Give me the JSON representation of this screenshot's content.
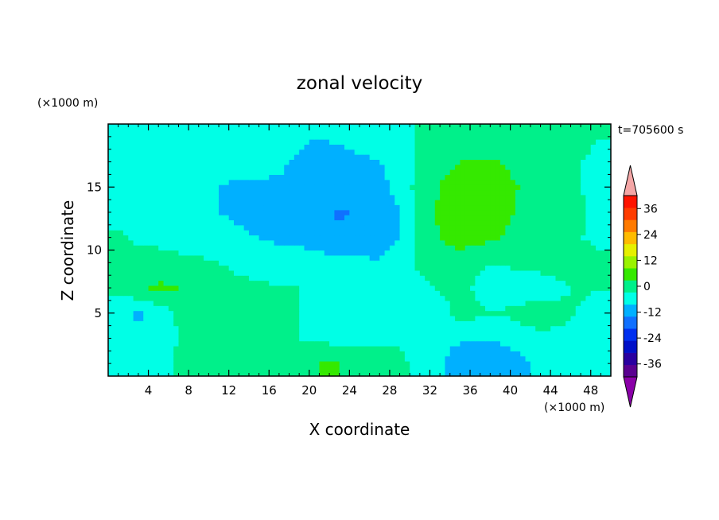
{
  "chart_data": {
    "type": "heatmap",
    "title": "zonal velocity",
    "xlabel": "X coordinate",
    "ylabel": "Z coordinate",
    "x_unit": "(×1000 m)",
    "y_unit": "(×1000 m)",
    "time_label": "t=705600 s",
    "xlim": [
      0,
      50
    ],
    "ylim": [
      0,
      20
    ],
    "x_ticks": [
      4,
      8,
      12,
      16,
      20,
      24,
      28,
      32,
      36,
      40,
      44,
      48
    ],
    "y_ticks": [
      5,
      10,
      15
    ],
    "colorbar": {
      "levels": [
        -42,
        -36,
        -30,
        -24,
        -18,
        -12,
        -6,
        0,
        6,
        12,
        18,
        24,
        30,
        36,
        42
      ],
      "tick_labels": [
        "36",
        "24",
        "12",
        "0",
        "-12",
        "-24",
        "-36"
      ],
      "tick_values": [
        36,
        24,
        12,
        0,
        -12,
        -24,
        -36
      ],
      "colors": [
        "#5a0090",
        "#2a00a0",
        "#0010c8",
        "#0030f0",
        "#1070ff",
        "#00b0ff",
        "#00ffe6",
        "#00f08a",
        "#35e900",
        "#9af200",
        "#e6f000",
        "#ffbb00",
        "#ff7a00",
        "#ff3c00",
        "#ff1400"
      ],
      "over_color": "#f4a6a6",
      "under_color": "#8a00a8"
    },
    "field": {
      "x": [
        1,
        3,
        5,
        7,
        9,
        11,
        13,
        15,
        17,
        19,
        21,
        23,
        25,
        27,
        29,
        31,
        33,
        35,
        37,
        39,
        41,
        43,
        45,
        47,
        49
      ],
      "z": [
        1,
        3,
        5,
        7,
        9,
        11,
        13,
        15,
        17,
        19
      ],
      "u": [
        [
          -1,
          -3,
          -2,
          1,
          1,
          1,
          3,
          3,
          4,
          5,
          6,
          6,
          5,
          3,
          2,
          -3,
          -5,
          -10,
          -12,
          -10,
          -7,
          -5,
          -4,
          -4,
          -3
        ],
        [
          -3,
          -4,
          -3,
          0,
          0,
          1,
          2,
          3,
          1,
          0,
          -1,
          -2,
          -2,
          -2,
          -1,
          -3,
          -4,
          -5,
          -6,
          -5,
          -4,
          -3,
          -3,
          -3,
          -3
        ],
        [
          -4,
          -7,
          -4,
          1,
          3,
          4,
          3,
          2,
          2,
          0,
          -2,
          -3,
          -4,
          -3,
          -3,
          -3,
          -4,
          3,
          1,
          0,
          3,
          6,
          3,
          -1,
          -5
        ],
        [
          2,
          5,
          7,
          6,
          3,
          2,
          1,
          1,
          0,
          0,
          -2,
          -3,
          -3,
          -4,
          -3,
          -2,
          1,
          3,
          -2,
          -4,
          -5,
          -6,
          -2,
          2,
          0
        ],
        [
          2,
          3,
          3,
          2,
          1,
          0,
          -1,
          -2,
          -3,
          -4,
          -4,
          -5,
          -5,
          -6,
          -4,
          2,
          5,
          5,
          1,
          0,
          2,
          4,
          5,
          3,
          1
        ],
        [
          1,
          -1,
          -2,
          -3,
          -3,
          -4,
          -5,
          -6,
          -7,
          -7,
          -8,
          -10,
          -9,
          -7,
          -6,
          2,
          6,
          7,
          8,
          6,
          3,
          1,
          1,
          0,
          -1
        ],
        [
          -2,
          -3,
          -4,
          -4,
          -5,
          -6,
          -7,
          -8,
          -8,
          -9,
          -10,
          -13,
          -11,
          -8,
          -6,
          3,
          7,
          9,
          10,
          8,
          5,
          3,
          2,
          1,
          -2
        ],
        [
          -2,
          -3,
          -3,
          -4,
          -5,
          -6,
          -7,
          -7,
          -7,
          -8,
          -9,
          -9,
          -8,
          -7,
          -5,
          3,
          6,
          8,
          8,
          7,
          6,
          5,
          2,
          0,
          -2
        ],
        [
          -2,
          -2,
          -3,
          -3,
          -3,
          -4,
          -4,
          -4,
          -5,
          -7,
          -9,
          -8,
          -7,
          -6,
          -5,
          2,
          5,
          6,
          6,
          6,
          5,
          4,
          3,
          0,
          -1
        ],
        [
          -1,
          -1,
          -1,
          -2,
          -2,
          -2,
          -2,
          -2,
          -3,
          -5,
          -6,
          -5,
          -4,
          -4,
          -3,
          1,
          3,
          4,
          4,
          4,
          3,
          3,
          2,
          1,
          0
        ]
      ]
    }
  }
}
